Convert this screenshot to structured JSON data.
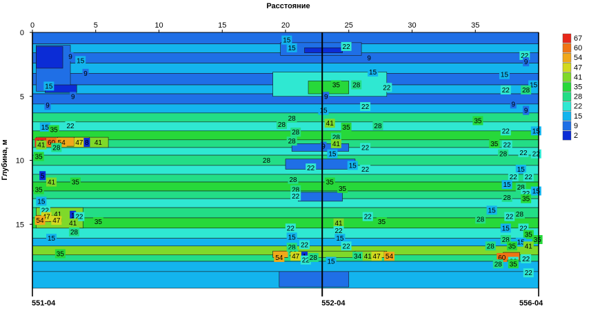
{
  "chart_data": {
    "type": "heatmap",
    "x_title": "Расстояние",
    "y_title": "Глубина, м",
    "xlim": [
      0,
      40
    ],
    "ylim": [
      0,
      20
    ],
    "x_ticks": [
      0,
      5,
      10,
      15,
      20,
      25,
      30,
      35
    ],
    "y_ticks": [
      0,
      5,
      10,
      15
    ],
    "wells": [
      {
        "name": "551-04",
        "x": 0
      },
      {
        "name": "552-04",
        "x": 22.9
      },
      {
        "name": "556-04",
        "x": 40
      }
    ],
    "color_scale": {
      "levels": [
        2,
        9,
        15,
        22,
        28,
        35,
        41,
        47,
        54,
        60,
        67
      ],
      "colors": [
        "#0b2cd6",
        "#1f6fe6",
        "#13b4ee",
        "#2fe8d2",
        "#23dd86",
        "#27d83a",
        "#7fd92a",
        "#d2d91f",
        "#f0a81a",
        "#f07414",
        "#e8281a"
      ]
    },
    "layers": [
      {
        "top": 0.0,
        "bottom": 0.9,
        "value": 9
      },
      {
        "top": 0.9,
        "bottom": 1.6,
        "value": 15
      },
      {
        "top": 1.6,
        "bottom": 2.4,
        "value": 9
      },
      {
        "top": 2.4,
        "bottom": 3.2,
        "value": 15
      },
      {
        "top": 3.2,
        "bottom": 4.1,
        "value": 9
      },
      {
        "top": 4.1,
        "bottom": 4.8,
        "value": 15
      },
      {
        "top": 4.8,
        "bottom": 5.6,
        "value": 9
      },
      {
        "top": 5.6,
        "bottom": 6.3,
        "value": 15
      },
      {
        "top": 6.3,
        "bottom": 7.0,
        "value": 28
      },
      {
        "top": 7.0,
        "bottom": 7.7,
        "value": 22
      },
      {
        "top": 7.7,
        "bottom": 8.4,
        "value": 35
      },
      {
        "top": 8.4,
        "bottom": 9.0,
        "value": 28
      },
      {
        "top": 9.0,
        "bottom": 9.6,
        "value": 22
      },
      {
        "top": 9.6,
        "bottom": 10.4,
        "value": 28
      },
      {
        "top": 10.4,
        "bottom": 11.1,
        "value": 22
      },
      {
        "top": 11.1,
        "bottom": 11.7,
        "value": 28
      },
      {
        "top": 11.7,
        "bottom": 12.4,
        "value": 35
      },
      {
        "top": 12.4,
        "bottom": 13.0,
        "value": 28
      },
      {
        "top": 13.0,
        "bottom": 13.7,
        "value": 22
      },
      {
        "top": 13.7,
        "bottom": 14.5,
        "value": 28
      },
      {
        "top": 14.5,
        "bottom": 15.3,
        "value": 35
      },
      {
        "top": 15.3,
        "bottom": 16.1,
        "value": 22
      },
      {
        "top": 16.1,
        "bottom": 16.7,
        "value": 15
      },
      {
        "top": 16.7,
        "bottom": 17.4,
        "value": 41
      },
      {
        "top": 17.4,
        "bottom": 17.9,
        "value": 28
      },
      {
        "top": 17.9,
        "bottom": 18.7,
        "value": 15
      },
      {
        "top": 18.7,
        "bottom": 20.0,
        "value": 15
      }
    ],
    "patches": [
      {
        "x0": 0.3,
        "x1": 3.0,
        "y0": 1.0,
        "y1": 4.6,
        "value": 9
      },
      {
        "x0": 0.3,
        "x1": 2.4,
        "y0": 1.1,
        "y1": 2.8,
        "value": 2
      },
      {
        "x0": 1.0,
        "x1": 3.5,
        "y0": 4.1,
        "y1": 4.7,
        "value": 2
      },
      {
        "x0": 19.6,
        "x1": 26.0,
        "y0": 0.8,
        "y1": 1.8,
        "value": 9
      },
      {
        "x0": 21.5,
        "x1": 24.5,
        "y0": 1.2,
        "y1": 1.6,
        "value": 2
      },
      {
        "x0": 19.0,
        "x1": 28.0,
        "y0": 3.1,
        "y1": 5.0,
        "value": 22
      },
      {
        "x0": 21.8,
        "x1": 25.0,
        "y0": 3.8,
        "y1": 4.8,
        "value": 35
      },
      {
        "x0": 0.5,
        "x1": 6.0,
        "y0": 8.2,
        "y1": 9.0,
        "value": 41
      },
      {
        "x0": 0.3,
        "x1": 2.2,
        "y0": 8.2,
        "y1": 8.9,
        "value": 60
      },
      {
        "x0": 0.5,
        "x1": 1.2,
        "y0": 8.3,
        "y1": 8.8,
        "value": 67
      },
      {
        "x0": 2.0,
        "x1": 3.3,
        "y0": 8.2,
        "y1": 8.9,
        "value": 54
      },
      {
        "x0": 3.3,
        "x1": 4.5,
        "y0": 8.2,
        "y1": 8.9,
        "value": 47
      },
      {
        "x0": 20.5,
        "x1": 25.0,
        "y0": 8.7,
        "y1": 9.3,
        "value": 9
      },
      {
        "x0": 20.0,
        "x1": 25.5,
        "y0": 9.9,
        "y1": 10.7,
        "value": 9
      },
      {
        "x0": 21.0,
        "x1": 24.5,
        "y0": 12.5,
        "y1": 13.2,
        "value": 9
      },
      {
        "x0": 0.3,
        "x1": 4.0,
        "y0": 13.7,
        "y1": 15.3,
        "value": 41
      },
      {
        "x0": 0.3,
        "x1": 1.4,
        "y0": 14.3,
        "y1": 14.8,
        "value": 54
      },
      {
        "x0": 1.4,
        "x1": 2.3,
        "y0": 14.3,
        "y1": 14.8,
        "value": 47
      },
      {
        "x0": 19.5,
        "x1": 28.0,
        "y0": 17.1,
        "y1": 17.6,
        "value": 41
      },
      {
        "x0": 19.0,
        "x1": 20.4,
        "y0": 17.1,
        "y1": 17.6,
        "value": 54
      },
      {
        "x0": 25.5,
        "x1": 27.8,
        "y0": 17.1,
        "y1": 17.6,
        "value": 47
      },
      {
        "x0": 37.2,
        "x1": 38.5,
        "y0": 17.2,
        "y1": 17.8,
        "value": 60
      },
      {
        "x0": 19.5,
        "x1": 25.0,
        "y0": 18.7,
        "y1": 19.9,
        "value": 9
      }
    ],
    "contour_labels": [
      {
        "x": 20.1,
        "y": 0.6,
        "text": "15"
      },
      {
        "x": 20.5,
        "y": 1.2,
        "text": "15"
      },
      {
        "x": 24.8,
        "y": 1.1,
        "text": "22"
      },
      {
        "x": 3.0,
        "y": 1.9,
        "text": "9"
      },
      {
        "x": 3.8,
        "y": 2.2,
        "text": "15"
      },
      {
        "x": 4.2,
        "y": 3.2,
        "text": "9"
      },
      {
        "x": 26.9,
        "y": 3.1,
        "text": "15"
      },
      {
        "x": 26.6,
        "y": 2.0,
        "text": "9"
      },
      {
        "x": 38.9,
        "y": 1.8,
        "text": "22"
      },
      {
        "x": 39.0,
        "y": 2.3,
        "text": "9"
      },
      {
        "x": 37.3,
        "y": 3.3,
        "text": "15"
      },
      {
        "x": 1.3,
        "y": 4.2,
        "text": "15"
      },
      {
        "x": 24.0,
        "y": 4.1,
        "text": "35"
      },
      {
        "x": 25.6,
        "y": 4.1,
        "text": "28"
      },
      {
        "x": 28.0,
        "y": 4.3,
        "text": "22"
      },
      {
        "x": 39.6,
        "y": 4.1,
        "text": "15"
      },
      {
        "x": 37.4,
        "y": 4.5,
        "text": "22"
      },
      {
        "x": 39.0,
        "y": 4.5,
        "text": "28"
      },
      {
        "x": 3.2,
        "y": 5.0,
        "text": "9"
      },
      {
        "x": 23.2,
        "y": 5.0,
        "text": "9"
      },
      {
        "x": 1.2,
        "y": 5.7,
        "text": "9"
      },
      {
        "x": 26.3,
        "y": 5.8,
        "text": "22"
      },
      {
        "x": 23.0,
        "y": 6.1,
        "text": "15"
      },
      {
        "x": 38.0,
        "y": 5.6,
        "text": "9"
      },
      {
        "x": 39.0,
        "y": 6.1,
        "text": "9"
      },
      {
        "x": 20.5,
        "y": 6.7,
        "text": "28"
      },
      {
        "x": 23.5,
        "y": 7.1,
        "text": "41"
      },
      {
        "x": 35.2,
        "y": 6.9,
        "text": "35"
      },
      {
        "x": 1.0,
        "y": 7.4,
        "text": "15"
      },
      {
        "x": 3.0,
        "y": 7.3,
        "text": "22"
      },
      {
        "x": 1.7,
        "y": 7.6,
        "text": "35"
      },
      {
        "x": 19.7,
        "y": 7.2,
        "text": "28"
      },
      {
        "x": 24.8,
        "y": 7.4,
        "text": "35"
      },
      {
        "x": 27.3,
        "y": 7.3,
        "text": "28"
      },
      {
        "x": 37.4,
        "y": 7.7,
        "text": "22"
      },
      {
        "x": 39.8,
        "y": 7.7,
        "text": "15"
      },
      {
        "x": 20.8,
        "y": 7.8,
        "text": "28"
      },
      {
        "x": 24.0,
        "y": 8.2,
        "text": "28"
      },
      {
        "x": 0.6,
        "y": 8.6,
        "text": "67"
      },
      {
        "x": 1.5,
        "y": 8.6,
        "text": "60"
      },
      {
        "x": 2.3,
        "y": 8.6,
        "text": "54"
      },
      {
        "x": 3.7,
        "y": 8.6,
        "text": "47"
      },
      {
        "x": 4.3,
        "y": 8.6,
        "text": "8"
      },
      {
        "x": 5.2,
        "y": 8.6,
        "text": "41"
      },
      {
        "x": 0.7,
        "y": 8.8,
        "text": "41"
      },
      {
        "x": 1.9,
        "y": 9.0,
        "text": "28"
      },
      {
        "x": 20.5,
        "y": 8.5,
        "text": "28"
      },
      {
        "x": 23.0,
        "y": 8.9,
        "text": "9"
      },
      {
        "x": 24.0,
        "y": 8.7,
        "text": "41"
      },
      {
        "x": 26.3,
        "y": 9.0,
        "text": "22"
      },
      {
        "x": 36.5,
        "y": 8.7,
        "text": "35"
      },
      {
        "x": 37.5,
        "y": 8.8,
        "text": "22"
      },
      {
        "x": 0.5,
        "y": 9.7,
        "text": "35"
      },
      {
        "x": 23.7,
        "y": 9.5,
        "text": "15"
      },
      {
        "x": 37.2,
        "y": 9.5,
        "text": "28"
      },
      {
        "x": 38.8,
        "y": 9.4,
        "text": "22"
      },
      {
        "x": 39.8,
        "y": 9.5,
        "text": "22"
      },
      {
        "x": 18.5,
        "y": 10.0,
        "text": "28"
      },
      {
        "x": 22.0,
        "y": 10.6,
        "text": "22"
      },
      {
        "x": 25.3,
        "y": 10.4,
        "text": "15"
      },
      {
        "x": 26.3,
        "y": 10.7,
        "text": "22"
      },
      {
        "x": 38.6,
        "y": 10.7,
        "text": "15"
      },
      {
        "x": 38.0,
        "y": 11.3,
        "text": "22"
      },
      {
        "x": 39.2,
        "y": 11.3,
        "text": "22"
      },
      {
        "x": 0.8,
        "y": 11.2,
        "text": "5"
      },
      {
        "x": 1.5,
        "y": 11.7,
        "text": "41"
      },
      {
        "x": 3.4,
        "y": 11.7,
        "text": "35"
      },
      {
        "x": 20.6,
        "y": 11.5,
        "text": "28"
      },
      {
        "x": 23.5,
        "y": 11.7,
        "text": "35"
      },
      {
        "x": 24.5,
        "y": 12.2,
        "text": "35"
      },
      {
        "x": 37.5,
        "y": 11.9,
        "text": "15"
      },
      {
        "x": 38.6,
        "y": 12.1,
        "text": "28"
      },
      {
        "x": 0.5,
        "y": 12.3,
        "text": "35"
      },
      {
        "x": 20.8,
        "y": 12.3,
        "text": "28"
      },
      {
        "x": 39.0,
        "y": 12.6,
        "text": "22"
      },
      {
        "x": 39.8,
        "y": 12.4,
        "text": "15"
      },
      {
        "x": 20.8,
        "y": 12.8,
        "text": "22"
      },
      {
        "x": 37.5,
        "y": 12.9,
        "text": "28"
      },
      {
        "x": 39.0,
        "y": 13.0,
        "text": "35"
      },
      {
        "x": 0.7,
        "y": 13.2,
        "text": "15"
      },
      {
        "x": 36.3,
        "y": 13.9,
        "text": "15"
      },
      {
        "x": 1.0,
        "y": 13.9,
        "text": "22"
      },
      {
        "x": 2.0,
        "y": 14.2,
        "text": "41"
      },
      {
        "x": 3.2,
        "y": 14.3,
        "text": "1"
      },
      {
        "x": 3.7,
        "y": 14.4,
        "text": "22"
      },
      {
        "x": 1.1,
        "y": 14.4,
        "text": "47"
      },
      {
        "x": 1.9,
        "y": 14.7,
        "text": "47"
      },
      {
        "x": 0.6,
        "y": 14.7,
        "text": "54"
      },
      {
        "x": 3.2,
        "y": 14.9,
        "text": "41"
      },
      {
        "x": 5.2,
        "y": 14.8,
        "text": "35"
      },
      {
        "x": 26.5,
        "y": 14.4,
        "text": "22"
      },
      {
        "x": 24.2,
        "y": 14.9,
        "text": "41"
      },
      {
        "x": 27.6,
        "y": 14.8,
        "text": "35"
      },
      {
        "x": 35.4,
        "y": 14.6,
        "text": "28"
      },
      {
        "x": 37.7,
        "y": 14.4,
        "text": "22"
      },
      {
        "x": 38.5,
        "y": 14.2,
        "text": "28"
      },
      {
        "x": 20.4,
        "y": 15.3,
        "text": "22"
      },
      {
        "x": 24.2,
        "y": 15.5,
        "text": "22"
      },
      {
        "x": 3.3,
        "y": 15.6,
        "text": "28"
      },
      {
        "x": 37.4,
        "y": 15.3,
        "text": "15"
      },
      {
        "x": 38.8,
        "y": 15.3,
        "text": "22"
      },
      {
        "x": 39.2,
        "y": 15.8,
        "text": "35"
      },
      {
        "x": 20.5,
        "y": 16.0,
        "text": "15"
      },
      {
        "x": 24.3,
        "y": 16.1,
        "text": "15"
      },
      {
        "x": 1.5,
        "y": 16.1,
        "text": "15"
      },
      {
        "x": 37.4,
        "y": 16.2,
        "text": "28"
      },
      {
        "x": 39.9,
        "y": 16.2,
        "text": "35"
      },
      {
        "x": 38.6,
        "y": 16.4,
        "text": "15"
      },
      {
        "x": 24.8,
        "y": 16.7,
        "text": "22"
      },
      {
        "x": 20.5,
        "y": 16.8,
        "text": "28"
      },
      {
        "x": 21.5,
        "y": 16.6,
        "text": "22"
      },
      {
        "x": 36.2,
        "y": 16.7,
        "text": "28"
      },
      {
        "x": 37.9,
        "y": 16.7,
        "text": "35"
      },
      {
        "x": 39.2,
        "y": 16.7,
        "text": "41"
      },
      {
        "x": 2.2,
        "y": 17.3,
        "text": "35"
      },
      {
        "x": 20.6,
        "y": 17.3,
        "text": "28"
      },
      {
        "x": 19.5,
        "y": 17.6,
        "text": "54"
      },
      {
        "x": 20.8,
        "y": 17.5,
        "text": "47"
      },
      {
        "x": 21.5,
        "y": 17.5,
        "text": "1"
      },
      {
        "x": 21.6,
        "y": 17.8,
        "text": "22"
      },
      {
        "x": 22.2,
        "y": 17.6,
        "text": "28"
      },
      {
        "x": 23.6,
        "y": 17.9,
        "text": "15"
      },
      {
        "x": 25.7,
        "y": 17.5,
        "text": "34"
      },
      {
        "x": 26.5,
        "y": 17.5,
        "text": "41"
      },
      {
        "x": 27.2,
        "y": 17.5,
        "text": "47"
      },
      {
        "x": 28.2,
        "y": 17.5,
        "text": "54"
      },
      {
        "x": 37.1,
        "y": 17.6,
        "text": "60"
      },
      {
        "x": 38.0,
        "y": 17.9,
        "text": "22"
      },
      {
        "x": 39.0,
        "y": 17.7,
        "text": "22"
      },
      {
        "x": 36.8,
        "y": 18.1,
        "text": "28"
      },
      {
        "x": 38.0,
        "y": 18.1,
        "text": "35"
      },
      {
        "x": 39.2,
        "y": 18.8,
        "text": "22"
      }
    ]
  }
}
